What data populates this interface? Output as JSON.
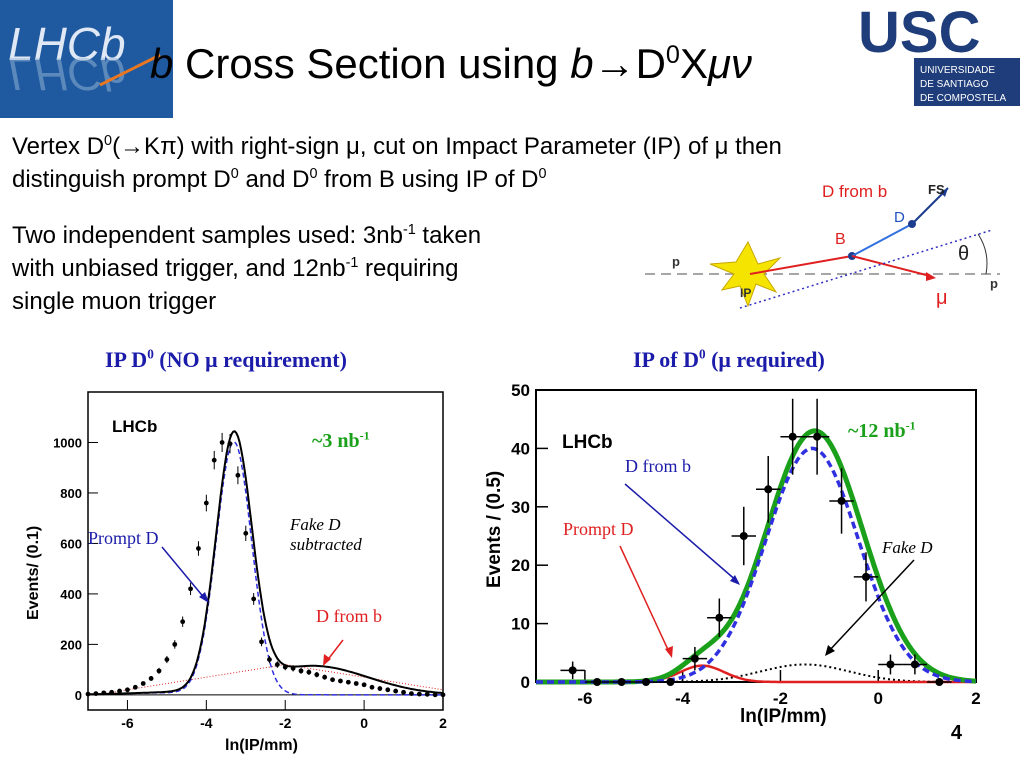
{
  "slide": {
    "title_prefix": "b",
    "title_mid": " Cross Section using ",
    "title_b": "b",
    "title_arrow": "→",
    "title_d": "D",
    "title_sup": "0",
    "title_x": "X",
    "title_mu": "μν",
    "line1_a": "Vertex D",
    "line1_sup": "0",
    "line1_b": "(→Kπ) with right-sign μ, cut on Impact Parameter (IP) of μ then",
    "line2_a": "distinguish prompt D",
    "line2_sup1": "0",
    "line2_b": " and D",
    "line2_sup2": "0",
    "line2_c": " from B using IP of D",
    "line2_sup3": "0",
    "samples_a": "Two independent samples used: 3nb",
    "samples_sup1": "-1",
    "samples_b": " taken",
    "samples_c": "with unbiased trigger, and 12nb",
    "samples_sup2": "-1",
    "samples_d": " requiring",
    "samples_e": "single muon trigger",
    "page_number": "4"
  },
  "logos": {
    "lhcb": "LHCb",
    "usc": "USC",
    "usc_line1": "UNIVERSIDADE",
    "usc_line2": "DE SANTIAGO",
    "usc_line3": "DE COMPOSTELA"
  },
  "diagram": {
    "d_from_b": "D from b",
    "fs": "FS",
    "d": "D",
    "b": "B",
    "theta": "θ",
    "p_left": "p",
    "p_right": "p",
    "ip": "IP",
    "mu": "μ"
  },
  "colors": {
    "blue_text": "#1c1caa",
    "green": "#1aa01a",
    "red": "#e02020",
    "dashed_blue": "#3030e0"
  },
  "chart_data": [
    {
      "type": "scatter",
      "title": "IP D0 (NO μ requirement)",
      "title_parts": {
        "a": "IP D",
        "sup": "0",
        "b": " (NO μ requirement)"
      },
      "experiment_label": "LHCb",
      "xlabel": "ln(IP/mm)",
      "ylabel": "Events/ (0.1)",
      "xlim": [
        -7,
        2
      ],
      "ylim": [
        -60,
        1200
      ],
      "xticks": [
        -6,
        -4,
        -2,
        0,
        2
      ],
      "yticks": [
        0,
        200,
        400,
        600,
        800,
        1000
      ],
      "x": [
        -7.0,
        -6.8,
        -6.6,
        -6.4,
        -6.2,
        -6.0,
        -5.8,
        -5.6,
        -5.4,
        -5.2,
        -5.0,
        -4.8,
        -4.6,
        -4.4,
        -4.2,
        -4.0,
        -3.8,
        -3.6,
        -3.4,
        -3.2,
        -3.0,
        -2.8,
        -2.6,
        -2.4,
        -2.2,
        -2.0,
        -1.8,
        -1.6,
        -1.4,
        -1.2,
        -1.0,
        -0.8,
        -0.6,
        -0.4,
        -0.2,
        0.0,
        0.2,
        0.4,
        0.6,
        0.8,
        1.0,
        1.2,
        1.4,
        1.6,
        1.8,
        2.0
      ],
      "values": [
        3,
        5,
        8,
        10,
        15,
        20,
        30,
        45,
        65,
        95,
        140,
        200,
        290,
        420,
        580,
        760,
        930,
        1000,
        995,
        870,
        640,
        380,
        210,
        140,
        120,
        110,
        105,
        95,
        90,
        80,
        70,
        60,
        55,
        50,
        45,
        40,
        30,
        25,
        20,
        15,
        10,
        5,
        3,
        2,
        0,
        0
      ],
      "series_fit_total": "black",
      "series_prompt": "dashed blue",
      "series_fake": "dotted red",
      "annotations": {
        "lumi_a": "~3 nb",
        "lumi_sup": "-1",
        "prompt": "Prompt D",
        "fake_a": "Fake D",
        "fake_b": "subtracted",
        "dfromb": "D from b"
      }
    },
    {
      "type": "scatter",
      "title": "IP of D0 (μ required)",
      "title_parts": {
        "a": "IP of D",
        "sup": "0",
        "b": "  (μ required)"
      },
      "experiment_label": "LHCb",
      "xlabel": "ln(IP/mm)",
      "ylabel": "Events / (0.5)",
      "xlim": [
        -7,
        2
      ],
      "ylim": [
        0,
        50
      ],
      "xticks": [
        -6,
        -4,
        -2,
        0,
        2
      ],
      "yticks": [
        0,
        10,
        20,
        30,
        40,
        50
      ],
      "x": [
        -6.25,
        -5.75,
        -5.25,
        -4.75,
        -4.25,
        -3.75,
        -3.25,
        -2.75,
        -2.25,
        -1.75,
        -1.25,
        -0.75,
        -0.25,
        0.25,
        0.75,
        1.25
      ],
      "values": [
        2,
        0,
        0,
        0,
        0,
        4,
        11,
        25,
        33,
        42,
        42,
        31,
        18,
        3,
        3,
        0
      ],
      "errors": [
        1.5,
        0,
        0,
        0,
        0,
        2,
        3.3,
        5,
        5.7,
        6.5,
        6.5,
        5.6,
        4.2,
        1.7,
        1.7,
        0
      ],
      "fit_peak_x": -1.3,
      "fit_peak_y": 43,
      "annotations": {
        "lumi_a": "~12 nb",
        "lumi_sup": "-1",
        "dfromb": "D from b",
        "prompt": "Prompt D",
        "fake": "Fake D"
      }
    }
  ]
}
